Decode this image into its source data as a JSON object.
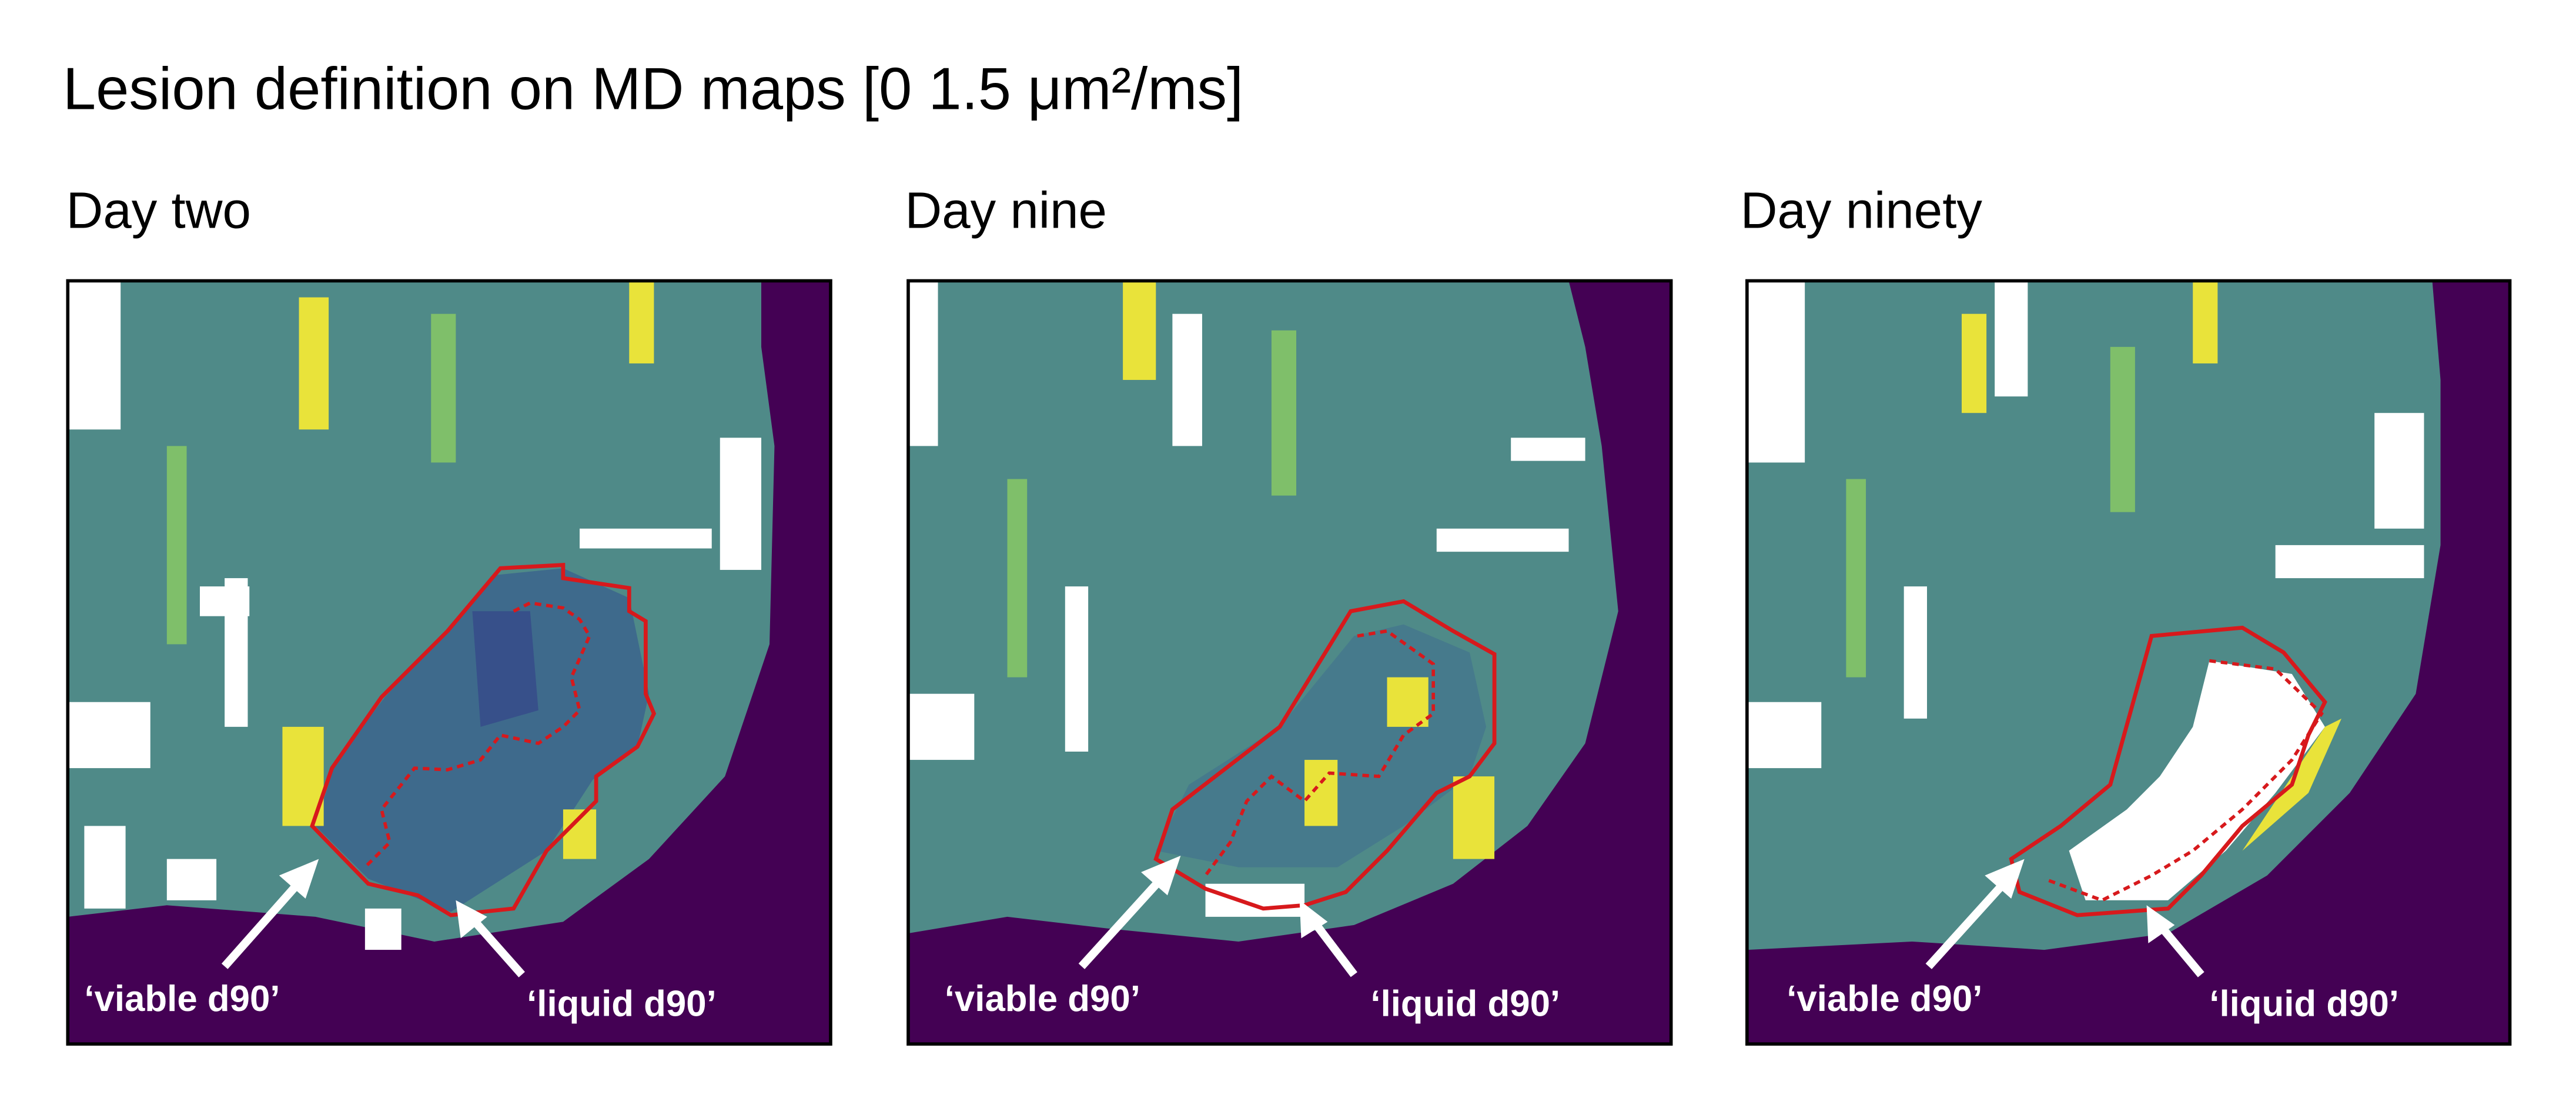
{
  "title": "Lesion definition on MD maps [0 1.5 μm²/ms]",
  "panels": [
    {
      "label": "Day two",
      "annotations": [
        "‘viable d90’",
        "‘liquid d90’"
      ]
    },
    {
      "label": "Day nine",
      "annotations": [
        "‘viable d90’",
        "‘liquid d90’"
      ]
    },
    {
      "label": "Day ninety",
      "annotations": [
        "‘viable d90’",
        "‘liquid d90’"
      ]
    }
  ]
}
